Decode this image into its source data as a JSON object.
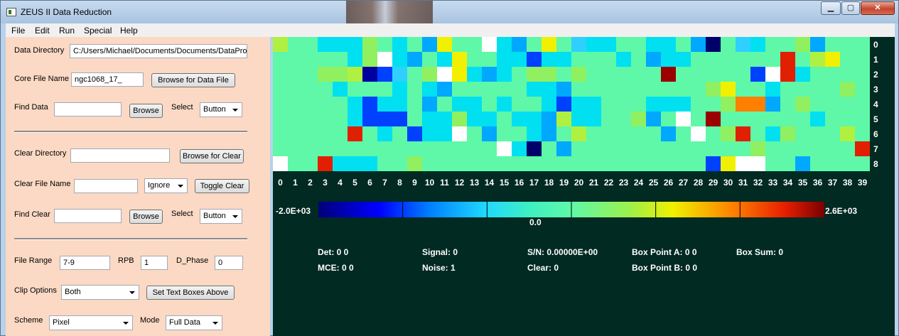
{
  "window": {
    "title": "ZEUS II Data Reduction",
    "controls": [
      "▁",
      "▢",
      "✕"
    ]
  },
  "menu": [
    "File",
    "Edit",
    "Run",
    "Special",
    "Help"
  ],
  "left": {
    "data_directory_label": "Data Directory",
    "data_directory_value": "C:/Users/Michael/Documents/Documents/DataPro",
    "core_file_label": "Core File Name",
    "core_file_value": "ngc1068_17_",
    "browse_data_file": "Browse for Data File",
    "find_data_label": "Find Data",
    "browse_1": "Browse",
    "select_label_1": "Select",
    "select_value_1": "Button",
    "clear_directory_label": "Clear Directory",
    "browse_for_clear": "Browse for Clear",
    "clear_file_label": "Clear File Name",
    "ignore_value": "Ignore",
    "toggle_clear": "Toggle Clear",
    "find_clear_label": "Find Clear",
    "browse_2": "Browse",
    "select_label_2": "Select",
    "select_value_2": "Button",
    "file_range_label": "File Range",
    "file_range_value": "7-9",
    "rpb_label": "RPB",
    "rpb_value": "1",
    "d_phase_label": "D_Phase",
    "d_phase_value": "0",
    "clip_options_label": "Clip Options",
    "clip_options_value": "Both",
    "set_text_boxes": "Set Text Boxes Above",
    "scheme_label": "Scheme",
    "scheme_value": "Pixel",
    "mode_label": "Mode",
    "mode_value": "Full Data"
  },
  "colorbar": {
    "min_label": "-2.0E+03",
    "max_label": "2.6E+03",
    "zero_label": "0.0"
  },
  "status": {
    "det": "Det: 0 0",
    "mce": "MCE: 0 0",
    "signal": "Signal: 0",
    "noise": "Noise: 1",
    "sn": "S/N: 0.00000E+00",
    "clear": "Clear: 0",
    "box_a": "Box Point A: 0 0",
    "box_b": "Box Point B: 0 0",
    "box_sum": "Box Sum: 0"
  },
  "heatmap": {
    "columns": [
      "0",
      "1",
      "2",
      "3",
      "4",
      "5",
      "6",
      "7",
      "8",
      "9",
      "10",
      "11",
      "12",
      "13",
      "14",
      "15",
      "16",
      "17",
      "18",
      "19",
      "20",
      "21",
      "22",
      "23",
      "24",
      "25",
      "26",
      "27",
      "28",
      "29",
      "30",
      "31",
      "32",
      "33",
      "34",
      "35",
      "36",
      "37",
      "38",
      "39"
    ],
    "rows": [
      "0",
      "1",
      "2",
      "3",
      "4",
      "5",
      "6",
      "7",
      "8"
    ],
    "colors": {
      "d": "#5ef8a8",
      "C": "#00e0f0",
      "c": "#2fd0ff",
      "b": "#00a8ff",
      "B": "#0040ff",
      "n": "#0000a0",
      "N": "#00006a",
      "g": "#90f060",
      "G": "#b0f040",
      "y": "#f0f000",
      "o": "#ff8000",
      "r": "#e02000",
      "R": "#9a0000",
      "w": "#ffffff"
    },
    "grid": [
      "GddCCCgdCdbyddwCbdydcCCddCCdbNdcCddgbddd",
      "dddddCgwCbdCyddCCBCCdddCdbCCddddddrdGydd",
      "dddggGnBcdgwyCbCdggdgdddddRdddddBwrCdddd",
      "ddddCdddCdCbdddddCCbdddddddddgyddCddddgd",
      "dddddCBCCdbdCCdCddCBCCdddCCCddgoobdgdddd",
      "dddddCBBBdCCgCCdCCbGCCddgbdwdRddddddCddd",
      "dddddrdCdBCCwdbddCbdGdddddbdwdgrdCgdddGd",
      "dddddddddddddddwCNdbddddddddddddgddddddr",
      "wddrCCCddgdddddddddddddddddddBywwddbdddd"
    ]
  }
}
